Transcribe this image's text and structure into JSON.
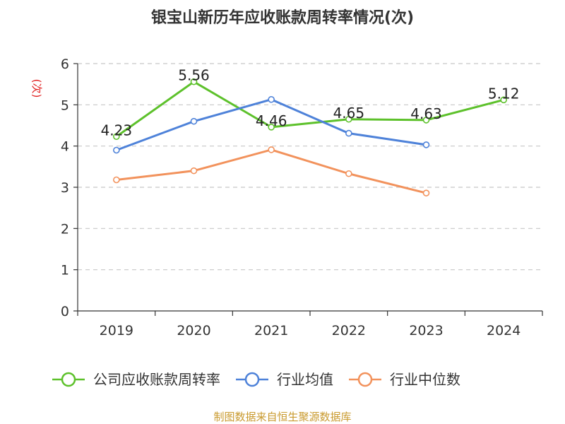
{
  "chart_data": {
    "type": "line",
    "title": "银宝山新历年应收账款周转率情况(次)",
    "ylabel": "(次)",
    "xlabel": "",
    "categories": [
      "2019",
      "2020",
      "2021",
      "2022",
      "2023",
      "2024"
    ],
    "ylim": [
      0,
      6
    ],
    "yticks": [
      "0",
      "1",
      "2",
      "3",
      "4",
      "5",
      "6"
    ],
    "grid": true,
    "legend_position": "bottom",
    "series": [
      {
        "name": "公司应收账款周转率",
        "color": "#5dc12b",
        "values": [
          4.23,
          5.56,
          4.46,
          4.65,
          4.63,
          5.12
        ],
        "labels": [
          "4.23",
          "5.56",
          "4.46",
          "4.65",
          "4.63",
          "5.12"
        ]
      },
      {
        "name": "行业均值",
        "color": "#4e82d9",
        "values": [
          3.9,
          4.6,
          5.13,
          4.31,
          4.03,
          null
        ]
      },
      {
        "name": "行业中位数",
        "color": "#f2925c",
        "values": [
          3.18,
          3.4,
          3.91,
          3.33,
          2.86,
          null
        ]
      }
    ],
    "source": "制图数据来自恒生聚源数据库"
  }
}
